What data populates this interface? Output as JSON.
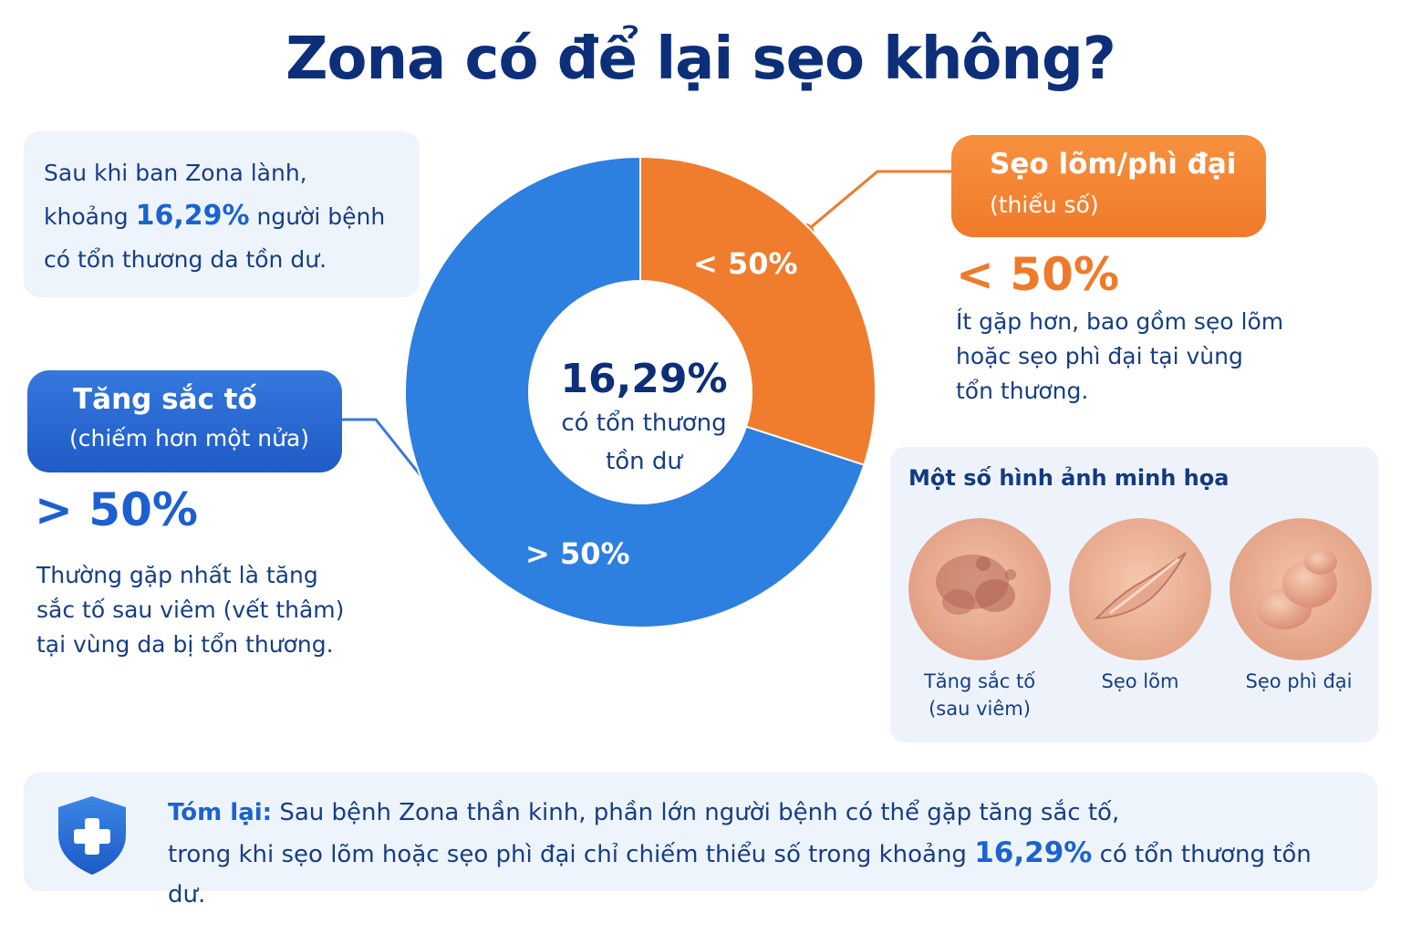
{
  "title": "Zona có để lại sẹo không?",
  "intro": {
    "line1": "Sau khi ban Zona lành,",
    "line2_pre": "khoảng ",
    "line2_value": "16,29%",
    "line2_post": " người bệnh",
    "line3": "có tổn thương da tồn dư."
  },
  "chart_data": {
    "type": "pie",
    "categories": [
      "Sẹo lõm/phì đại",
      "Tăng sắc tố"
    ],
    "values": [
      30,
      70
    ],
    "slice_labels": [
      "< 50%",
      "> 50%"
    ],
    "colors": [
      "#ef7d2d",
      "#2d7fe0"
    ],
    "center_value": "16,29%",
    "center_label_line1": "có tổn thương",
    "center_label_line2": "tồn dư"
  },
  "left_callout": {
    "title": "Tăng sắc tố",
    "subtitle": "(chiếm hơn một nửa)",
    "big_value": "> 50%",
    "desc_lines": [
      "Thường gặp nhất là tăng",
      "sắc tố sau viêm (vết thâm)",
      "tại vùng da bị tổn thương."
    ]
  },
  "right_callout": {
    "title": "Sẹo lõm/phì đại",
    "subtitle": "(thiểu số)",
    "big_value": "< 50%",
    "desc_lines": [
      "Ít gặp hơn, bao gồm sẹo lõm",
      "hoặc sẹo phì đại tại vùng",
      "tổn thương."
    ]
  },
  "gallery": {
    "title": "Một số hình ảnh minh họa",
    "items": [
      {
        "label_line1": "Tăng sắc tố",
        "label_line2": "(sau viêm)"
      },
      {
        "label_line1": "Sẹo lõm",
        "label_line2": ""
      },
      {
        "label_line1": "Sẹo phì đại",
        "label_line2": ""
      }
    ]
  },
  "summary": {
    "lead": "Tóm lại:",
    "line1": " Sau bệnh Zona thần kinh, phần lớn người bệnh có thể gặp tăng sắc tố,",
    "line2_pre": "trong khi sẹo lõm hoặc sẹo phì đại chỉ chiếm thiểu số trong khoảng ",
    "line2_value": "16,29%",
    "line2_post": " có tổn thương tồn dư.",
    "icon": "shield-plus-icon"
  },
  "colors": {
    "title": "#0d2f7a",
    "accent_blue": "#1c5fd0",
    "accent_orange": "#ef7a2a",
    "card_bg": "#eef4fc"
  }
}
